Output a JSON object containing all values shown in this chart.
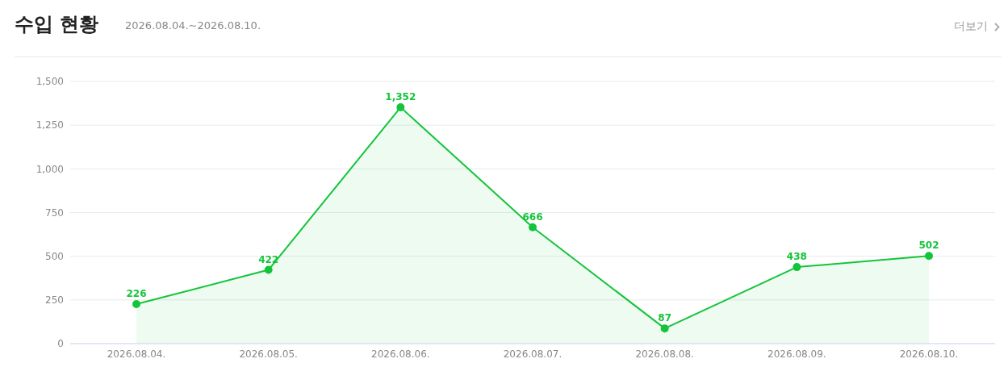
{
  "chart_data": {
    "type": "area",
    "title": "수입 현황",
    "subtitle": "2026.08.04.~2026.08.10.",
    "annotations": [
      "더보기"
    ],
    "categories": [
      "2026.08.04.",
      "2026.08.05.",
      "2026.08.06.",
      "2026.08.07.",
      "2026.08.08.",
      "2026.08.09.",
      "2026.08.10."
    ],
    "series": [
      {
        "color": "#14c43a",
        "values": [
          226,
          422,
          1352,
          666,
          87,
          438,
          502
        ],
        "value_labels": [
          "226",
          "422",
          "1,352",
          "666",
          "87",
          "438",
          "502"
        ]
      }
    ],
    "ylim": [
      0,
      1500
    ],
    "yticks": [
      0,
      {
        "value": 250,
        "label": "250"
      },
      {
        "value": 500,
        "label": "500"
      },
      {
        "value": 750,
        "label": "750"
      },
      {
        "value": 1000,
        "label": "1,000"
      },
      {
        "value": 1250,
        "label": "1,250"
      },
      {
        "value": 1500,
        "label": "1,500"
      }
    ],
    "grid": "y",
    "marker": "circle"
  }
}
